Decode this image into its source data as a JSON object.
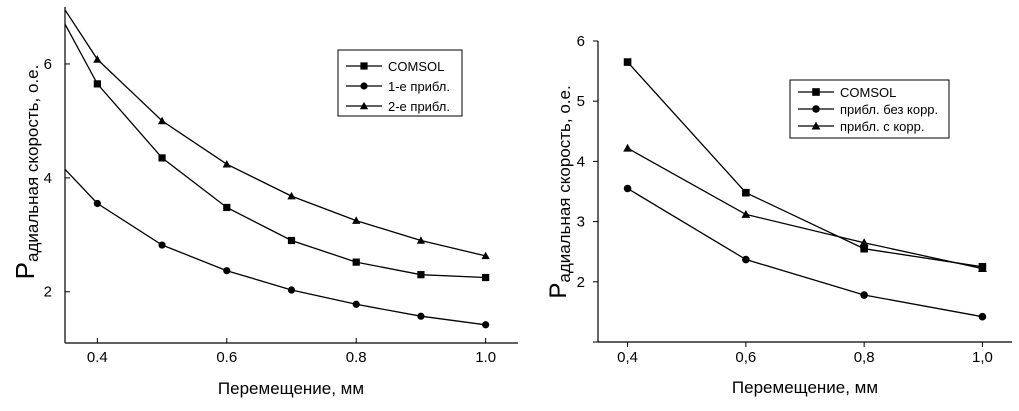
{
  "chart_data": [
    {
      "type": "line",
      "xlabel": "Перемещение, мм",
      "ylabel_initial": "Р",
      "ylabel_rest": "адиальная скорость, о.е.",
      "xlim": [
        0.35,
        1.05
      ],
      "ylim": [
        1.1,
        7.0
      ],
      "xticks": [
        0.4,
        0.6,
        0.8,
        1.0
      ],
      "xtick_labels": [
        "0.4",
        "0.6",
        "0.8",
        "1.0"
      ],
      "yticks": [
        2,
        4,
        6
      ],
      "ytick_labels": [
        "2",
        "4",
        "6"
      ],
      "legend_position": "top-right",
      "series": [
        {
          "name": "COMSOL",
          "marker": "square",
          "x": [
            0.35,
            0.4,
            0.5,
            0.6,
            0.7,
            0.8,
            0.9,
            1.0
          ],
          "y": [
            6.7,
            5.65,
            4.35,
            3.48,
            2.9,
            2.52,
            2.3,
            2.25
          ],
          "marker_x": [
            0.4,
            0.5,
            0.6,
            0.7,
            0.8,
            0.9,
            1.0
          ]
        },
        {
          "name": "1-е прибл.",
          "marker": "circle",
          "x": [
            0.35,
            0.4,
            0.5,
            0.6,
            0.7,
            0.8,
            0.9,
            1.0
          ],
          "y": [
            4.15,
            3.55,
            2.82,
            2.37,
            2.03,
            1.78,
            1.57,
            1.42
          ],
          "marker_x": [
            0.4,
            0.5,
            0.6,
            0.7,
            0.8,
            0.9,
            1.0
          ]
        },
        {
          "name": "2-е прибл.",
          "marker": "triangle",
          "x": [
            0.35,
            0.4,
            0.5,
            0.6,
            0.7,
            0.8,
            0.9,
            1.0
          ],
          "y": [
            6.95,
            6.08,
            5.0,
            4.24,
            3.68,
            3.25,
            2.9,
            2.63
          ],
          "marker_x": [
            0.4,
            0.5,
            0.6,
            0.7,
            0.8,
            0.9,
            1.0
          ]
        }
      ]
    },
    {
      "type": "line",
      "xlabel": "Перемещение, мм",
      "ylabel_initial": "Р",
      "ylabel_rest": "адиальная скорость, о.е.",
      "xlim": [
        0.35,
        1.05
      ],
      "ylim": [
        1.0,
        6.0
      ],
      "xticks": [
        0.4,
        0.6,
        0.8,
        1.0
      ],
      "xtick_labels": [
        "0,4",
        "0,6",
        "0,8",
        "1,0"
      ],
      "yticks": [
        1,
        2,
        3,
        4,
        5,
        6
      ],
      "ytick_labels": [
        "",
        "2",
        "3",
        "4",
        "5",
        "6"
      ],
      "legend_position": "top-right",
      "series": [
        {
          "name": "COMSOL",
          "marker": "square",
          "x": [
            0.4,
            0.6,
            0.8,
            1.0
          ],
          "y": [
            5.65,
            3.48,
            2.55,
            2.25
          ],
          "marker_x": [
            0.4,
            0.6,
            0.8,
            1.0
          ]
        },
        {
          "name": "прибл. без корр.",
          "marker": "circle",
          "x": [
            0.4,
            0.6,
            0.8,
            1.0
          ],
          "y": [
            3.55,
            2.37,
            1.78,
            1.42
          ],
          "marker_x": [
            0.4,
            0.6,
            0.8,
            1.0
          ]
        },
        {
          "name": "прибл. с корр.",
          "marker": "triangle",
          "x": [
            0.4,
            0.6,
            0.8,
            1.0
          ],
          "y": [
            4.22,
            3.12,
            2.65,
            2.22
          ],
          "marker_x": [
            0.4,
            0.6,
            0.8,
            1.0
          ]
        }
      ]
    }
  ]
}
